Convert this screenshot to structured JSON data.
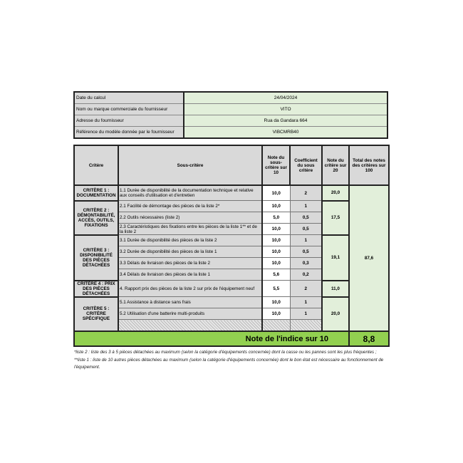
{
  "info": [
    {
      "label": "Date du calcul",
      "value": "24/04/2024"
    },
    {
      "label": "Nom ou marque commerciale du fournisseur",
      "value": "VITO"
    },
    {
      "label": "Adresse du fournisseur",
      "value": "Rua da Gandara 664"
    },
    {
      "label": "Référence du modèle donnée par le fournisseur",
      "value": "VIBCMRB40"
    }
  ],
  "headers": {
    "critere": "Critère",
    "sous_critere": "Sous-critère",
    "note_sous": "Note du sous-critère sur 10",
    "coef": "Coefficient du sous critère",
    "note_crit": "Note du critère sur 20",
    "total": "Total des notes des critères sur 100"
  },
  "criteria": [
    {
      "name": "CRITÈRE 1 : DOCUMENTATION",
      "note": "20,0",
      "subs": [
        {
          "label": "1.1 Durée de disponibilité de la documentation technique et relative aux conseils d'utilisation et d'entretien",
          "value": "10,0",
          "coef": "2"
        }
      ]
    },
    {
      "name": "CRITÈRE 2 : DÉMONTABILITÉ, ACCÈS, OUTILS, FIXATIONS",
      "note": "17,5",
      "subs": [
        {
          "label": "2.1 Facilité de démontage des pièces de la liste 2*",
          "value": "10,0",
          "coef": "1"
        },
        {
          "label": "2.2 Outils nécessaires (liste 2)",
          "value": "5,0",
          "coef": "0,5"
        },
        {
          "label": "2.3 Caractéristiques des fixations entre les pièces de la liste 1** et de la liste 2",
          "value": "10,0",
          "coef": "0,5"
        }
      ]
    },
    {
      "name": "CRITÈRE 3 : DISPONIBILITÉ DES PIÈCES DÉTACHÉES",
      "note": "19,1",
      "subs": [
        {
          "label": "3.1 Durée de disponibilité des pièces de la liste 2",
          "value": "10,0",
          "coef": "1"
        },
        {
          "label": "3.2 Durée de disponibilité des pièces de la liste 1",
          "value": "10,0",
          "coef": "0,5"
        },
        {
          "label": "3.3 Délais de livraison des pièces de la liste 2",
          "value": "10,0",
          "coef": "0,3"
        },
        {
          "label": "3.4 Délais de livraison des pièces de la liste 1",
          "value": "5,6",
          "coef": "0,2"
        }
      ]
    },
    {
      "name": "CRITÈRE 4 : PRIX DES PIÈCES DÉTACHÉES",
      "note": "11,0",
      "subs": [
        {
          "label": "4. Rapport prix des pièces de la liste 2 sur prix de l'équipement neuf",
          "value": "5,5",
          "coef": "2"
        }
      ]
    },
    {
      "name": "CRITÈRE 5 : CRITÈRE SPÉCIFIQUE",
      "note": "20,0",
      "subs": [
        {
          "label": "5.1 Assistance à distance sans frais",
          "value": "10,0",
          "coef": "1"
        },
        {
          "label": "5.2 Utilisation d'une batterire multi-produits",
          "value": "10,0",
          "coef": "1"
        }
      ]
    }
  ],
  "total_100": "87,6",
  "index_label": "Note de l'indice sur 10",
  "index_value": "8,8",
  "footnotes": [
    "*liste 2 : liste des 3 à 5 pièces détachées au maximum (selon la catégorie d'équipements concernée) dont la casse ou les pannes sont les plus fréquentes ;",
    "**liste 1 : liste de 10 autres pièces détachées au maximum (selon la catégorie d'équipements concernée) dont le bon état est nécessaire au fonctionnement de l'équipement."
  ],
  "colors": {
    "green_light": "#e2efda",
    "green_total": "#92d050",
    "grey": "#d9d9d9"
  }
}
